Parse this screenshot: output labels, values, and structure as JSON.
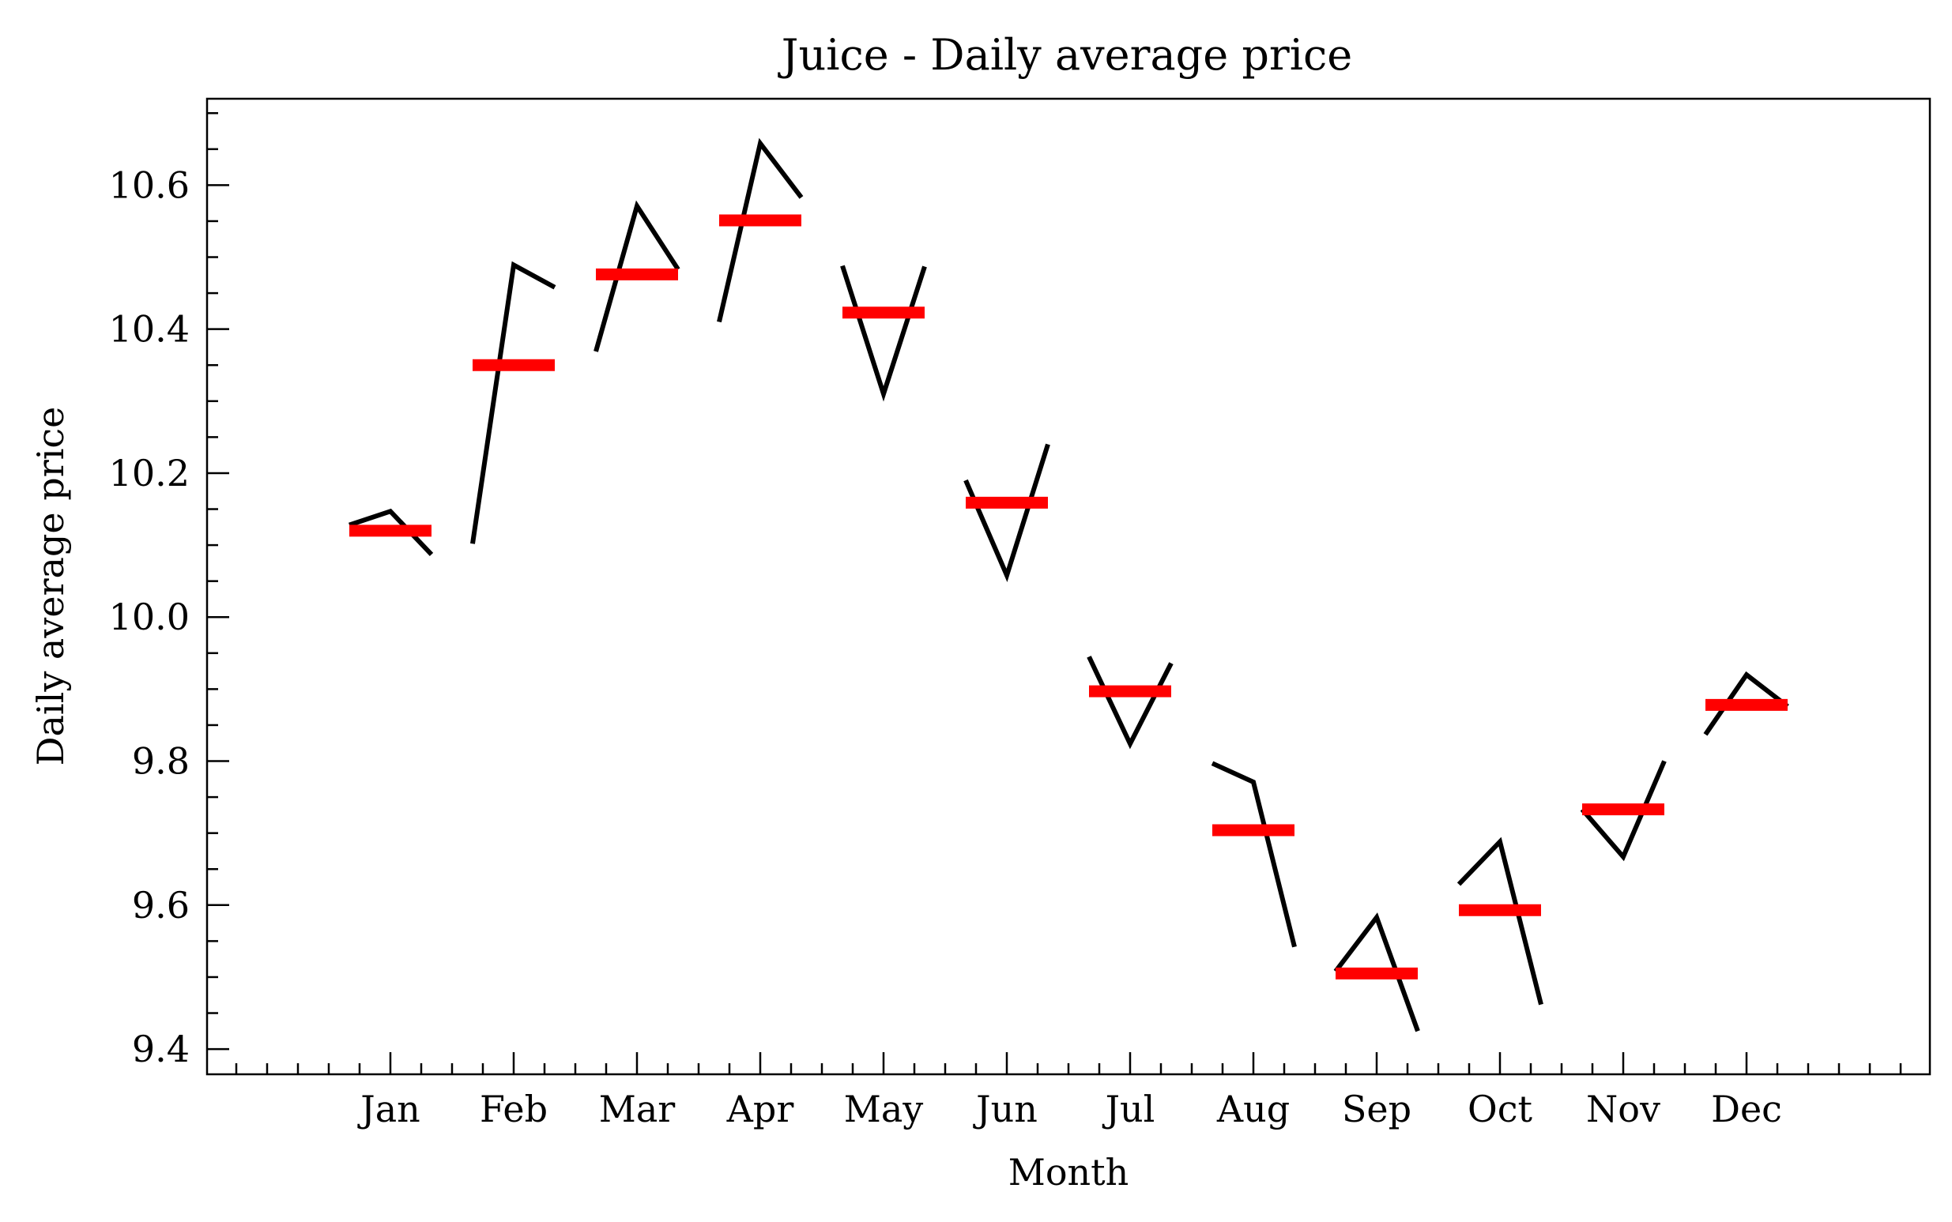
{
  "chart_data": {
    "type": "line",
    "title": "Juice - Daily average price",
    "xlabel": "Month",
    "ylabel": "Daily average price",
    "categories": [
      "Jan",
      "Feb",
      "Mar",
      "Apr",
      "May",
      "Jun",
      "Jul",
      "Aug",
      "Sep",
      "Oct",
      "Nov",
      "Dec"
    ],
    "ylim": [
      9.365,
      10.72
    ],
    "yticks": [
      "9.4",
      "9.6",
      "9.8",
      "10.0",
      "10.2",
      "10.4",
      "10.6"
    ],
    "series": [
      {
        "name": "",
        "segments": [
          [
            10.128,
            10.147,
            10.087
          ],
          [
            10.102,
            10.489,
            10.458
          ],
          [
            10.369,
            10.571,
            10.483
          ],
          [
            10.41,
            10.658,
            10.583
          ],
          [
            10.488,
            10.31,
            10.487
          ],
          [
            10.19,
            10.058,
            10.24
          ],
          [
            9.945,
            9.824,
            9.936
          ],
          [
            9.797,
            9.771,
            9.542
          ],
          [
            9.508,
            9.583,
            9.425
          ],
          [
            9.629,
            9.688,
            9.462
          ],
          [
            9.733,
            9.667,
            9.8
          ],
          [
            9.837,
            9.92,
            9.876
          ]
        ],
        "mean": [
          10.12,
          10.35,
          10.476,
          10.551,
          10.423,
          10.159,
          9.897,
          9.704,
          9.505,
          9.593,
          9.733,
          9.878
        ]
      }
    ],
    "colors": {
      "segment": "#000000",
      "mean": "#ff0000"
    },
    "grid": false,
    "legend": "none"
  }
}
